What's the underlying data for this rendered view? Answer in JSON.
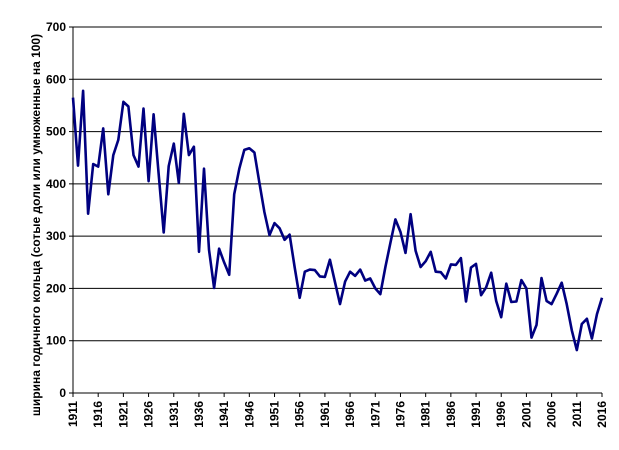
{
  "chart_data": {
    "type": "line",
    "title": "",
    "xlabel": "",
    "ylabel": "ширина годичного кольца (сотые доли или умноженные на 100)",
    "xlim": [
      1911,
      2016
    ],
    "ylim": [
      0,
      700
    ],
    "y_ticks": [
      0,
      100,
      200,
      300,
      400,
      500,
      600,
      700
    ],
    "x_ticks": [
      1911,
      1916,
      1921,
      1926,
      1931,
      1936,
      1941,
      1946,
      1951,
      1956,
      1961,
      1966,
      1971,
      1976,
      1981,
      1986,
      1991,
      1996,
      2001,
      2006,
      2011,
      2016
    ],
    "grid": "horizontal",
    "legend": "none",
    "line_color": "#000080",
    "series": [
      {
        "x": [
          1911,
          1912,
          1913,
          1914,
          1915,
          1916,
          1917,
          1918,
          1919,
          1920,
          1921,
          1922,
          1923,
          1924,
          1925,
          1926,
          1927,
          1928,
          1929,
          1930,
          1931,
          1932,
          1933,
          1934,
          1935,
          1936,
          1937,
          1938,
          1939,
          1940,
          1941,
          1942,
          1943,
          1944,
          1945,
          1946,
          1947,
          1948,
          1949,
          1950,
          1951,
          1952,
          1953,
          1954,
          1955,
          1956,
          1957,
          1958,
          1959,
          1960,
          1961,
          1962,
          1963,
          1964,
          1965,
          1966,
          1967,
          1968,
          1969,
          1970,
          1971,
          1972,
          1973,
          1974,
          1975,
          1976,
          1977,
          1978,
          1979,
          1980,
          1981,
          1982,
          1983,
          1984,
          1985,
          1986,
          1987,
          1988,
          1989,
          1990,
          1991,
          1992,
          1993,
          1994,
          1995,
          1996,
          1997,
          1998,
          1999,
          2000,
          2001,
          2002,
          2003,
          2004,
          2005,
          2006,
          2007,
          2008,
          2009,
          2010,
          2011,
          2012,
          2013,
          2014,
          2015,
          2016
        ],
        "values": [
          565,
          435,
          578,
          343,
          438,
          433,
          506,
          380,
          455,
          484,
          557,
          548,
          455,
          433,
          544,
          405,
          533,
          420,
          307,
          434,
          477,
          402,
          534,
          455,
          471,
          270,
          429,
          274,
          201,
          276,
          250,
          226,
          380,
          429,
          465,
          468,
          460,
          402,
          346,
          302,
          325,
          315,
          293,
          303,
          240,
          182,
          232,
          236,
          235,
          223,
          222,
          255,
          212,
          170,
          213,
          232,
          224,
          236,
          215,
          219,
          200,
          189,
          241,
          287,
          332,
          308,
          268,
          342,
          272,
          241,
          252,
          270,
          232,
          231,
          219,
          246,
          245,
          258,
          175,
          240,
          247,
          187,
          202,
          230,
          176,
          145,
          209,
          174,
          175,
          216,
          200,
          106,
          130,
          220,
          176,
          170,
          190,
          211,
          170,
          120,
          82,
          132,
          142,
          104,
          151,
          182
        ]
      }
    ]
  }
}
